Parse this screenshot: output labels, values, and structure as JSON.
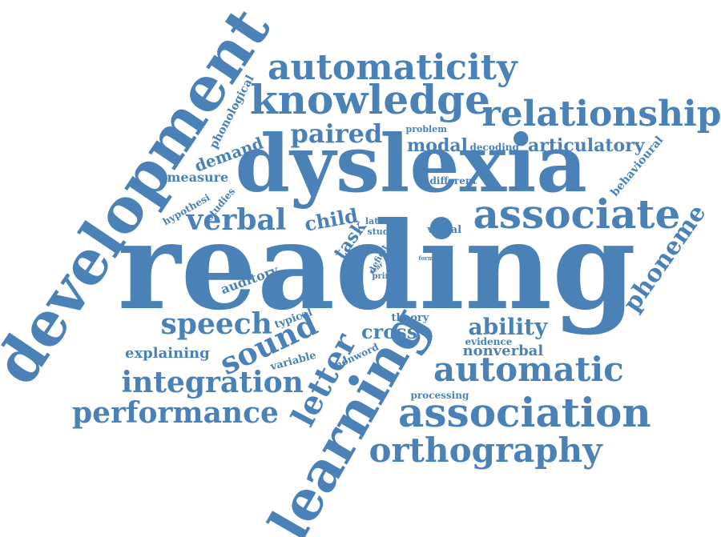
{
  "color": "#4a82b8",
  "words": {
    "reading": "reading",
    "dyslexia": "dyslexia",
    "development": "development",
    "learning": "learning",
    "association": "association",
    "associate": "associate",
    "knowledge": "knowledge",
    "automaticity": "automaticity",
    "relationship": "relationship",
    "automatic": "automatic",
    "orthography": "orthography",
    "integration": "integration",
    "performance": "performance",
    "sound": "sound",
    "letter": "letter",
    "speech": "speech",
    "verbal": "verbal",
    "paired": "paired",
    "phoneme": "phoneme",
    "ability": "ability",
    "child": "child",
    "modal": "modal",
    "articulatory": "articulatory",
    "cross": "cross",
    "nonverbal": "nonverbal",
    "explaining": "explaining",
    "demand": "demand",
    "measure": "measure",
    "phonological": "phonological",
    "task": "task",
    "auditory": "auditory",
    "behavioural": "behavioural",
    "visual": "visual",
    "processing": "processing",
    "variable": "variable",
    "typical": "typical",
    "nonword": "nonword",
    "theory": "theory",
    "evidence": "evidence",
    "different": "different",
    "decoding": "decoding",
    "problem": "problem",
    "hypothesi": "hypothesi",
    "studies": "studies",
    "latent": "latent",
    "study": "study",
    "deficit": "deficit",
    "prime": "prime",
    "year": "year",
    "novel": "novel",
    "form": "form"
  }
}
